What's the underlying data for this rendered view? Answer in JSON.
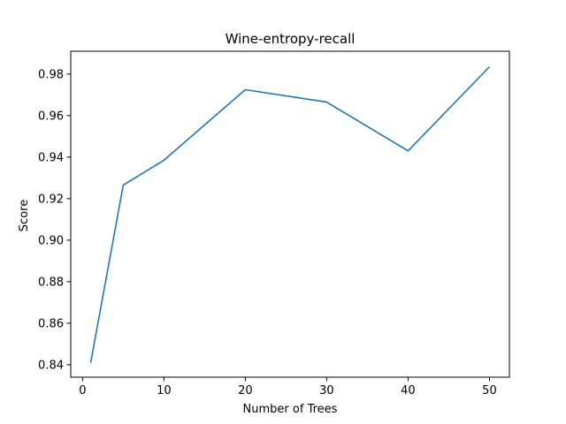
{
  "chart_data": {
    "type": "line",
    "title": "Wine-entropy-recall",
    "xlabel": "Number of Trees",
    "ylabel": "Score",
    "xlim": [
      -1.45,
      52.45
    ],
    "ylim": [
      0.834,
      0.991
    ],
    "xticks": [
      0,
      10,
      20,
      30,
      40,
      50
    ],
    "yticks": [
      0.84,
      0.86,
      0.88,
      0.9,
      0.92,
      0.94,
      0.96,
      0.98
    ],
    "ytick_labels": [
      "0.84",
      "0.86",
      "0.88",
      "0.90",
      "0.92",
      "0.94",
      "0.96",
      "0.98"
    ],
    "grid": false,
    "legend": "none",
    "line_color": "#1f77b4",
    "series": [
      {
        "x": [
          1,
          5,
          10,
          20,
          30,
          40,
          50
        ],
        "values": [
          0.841,
          0.9265,
          0.9385,
          0.9725,
          0.9665,
          0.943,
          0.9835
        ]
      }
    ]
  }
}
